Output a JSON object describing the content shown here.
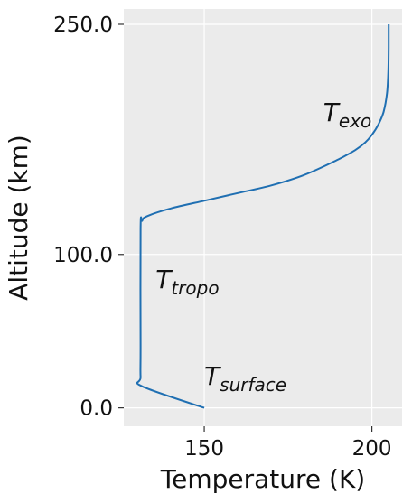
{
  "chart_data": {
    "type": "line",
    "xlabel": "Temperature (K)",
    "ylabel": "Altitude (km)",
    "xlim": [
      126,
      209
    ],
    "ylim": [
      -12,
      260
    ],
    "xticks": [
      150,
      200
    ],
    "xtick_labels": [
      "150",
      "200"
    ],
    "yticks": [
      0,
      100,
      250
    ],
    "ytick_labels": [
      "0.0",
      "100.0",
      "250.0"
    ],
    "grid": true,
    "background": "#ebebeb",
    "series": [
      {
        "color": "#1f6fb2",
        "x": [
          150,
          131.5,
          131,
          131,
          131,
          131.5,
          133,
          140,
          150,
          160,
          170,
          180,
          190,
          195,
          198,
          200,
          202,
          203.5,
          204.5,
          204.9,
          205,
          205
        ],
        "y": [
          0,
          14,
          20,
          40,
          117,
          122,
          125,
          130,
          135,
          140,
          145,
          152,
          162,
          168,
          173,
          178,
          185,
          193,
          205,
          220,
          235,
          250
        ]
      }
    ],
    "annotations": [
      {
        "base": "T",
        "sub": "exo",
        "x": 185.5,
        "y": 187
      },
      {
        "base": "T",
        "sub": "tropo",
        "x": 135.5,
        "y": 78
      },
      {
        "base": "T",
        "sub": "surface",
        "x": 150,
        "y": 15
      }
    ]
  }
}
